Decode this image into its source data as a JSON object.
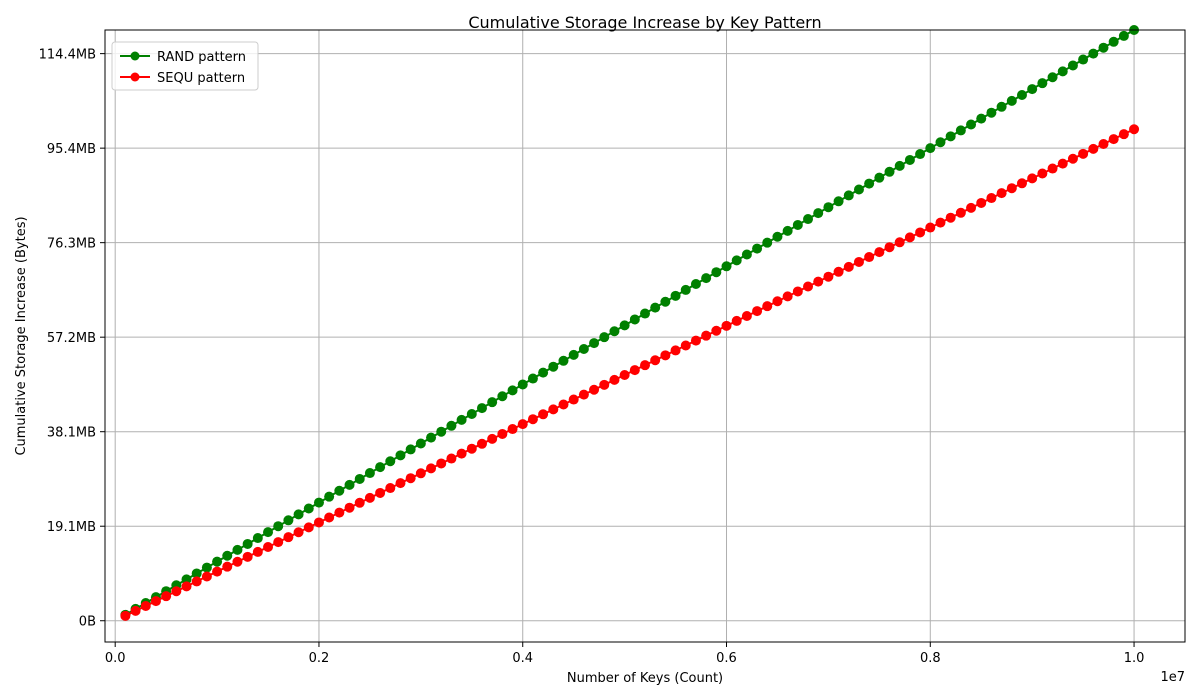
{
  "chart_data": {
    "type": "line",
    "title": "Cumulative Storage Increase by Key Pattern",
    "xlabel": "Number of Keys (Count)",
    "ylabel": "Cumulative Storage Increase (Bytes)",
    "x_offset_label": "1e7",
    "xlim": [
      -100000,
      10500000
    ],
    "ylim": [
      -4500000,
      125000000
    ],
    "x_ticks": [
      0,
      2000000,
      4000000,
      6000000,
      8000000,
      10000000
    ],
    "x_tick_labels": [
      "0.0",
      "0.2",
      "0.4",
      "0.6",
      "0.8",
      "1.0"
    ],
    "y_ticks": [
      0,
      20000000,
      40000000,
      60000000,
      80000000,
      100000000,
      120000000
    ],
    "y_tick_labels": [
      "0B",
      "19.1MB",
      "38.1MB",
      "57.2MB",
      "76.3MB",
      "95.4MB",
      "114.4MB"
    ],
    "grid": true,
    "legend_position": "top-left",
    "x": {
      "start": 100000,
      "step": 100000,
      "count": 100
    },
    "series": [
      {
        "name": "RAND pattern",
        "color": "#008000",
        "marker": "circle",
        "y_start": 1250000,
        "y_step": 1250000
      },
      {
        "name": "SEQU pattern",
        "color": "#ff0000",
        "marker": "circle",
        "y_start": 1040000,
        "y_step": 1040000
      }
    ]
  }
}
